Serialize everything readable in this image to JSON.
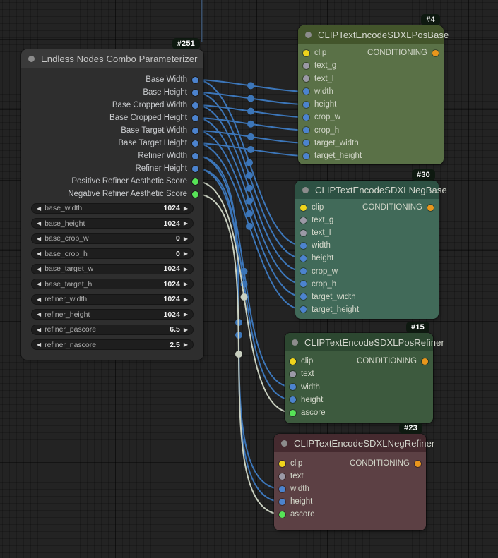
{
  "colors": {
    "canvas_bg": "#232323",
    "badge_bg": "#0e1910",
    "wire_int": "#3c76b9",
    "wire_float": "#c9d0c0",
    "wire_offscreen": "#3a506b",
    "slot": {
      "int": "#4c83ce",
      "score": "#57e357",
      "clip": "#efd41c",
      "text": "#9b99a6",
      "conditioning": "#e9961c"
    },
    "node": {
      "param_header": "#3a3a3a",
      "param_body": "#2e2e2e",
      "posbase_header": "#43552b",
      "posbase_body": "#5a7147",
      "negbase_header": "#2d5143",
      "negbase_body": "#416a59",
      "posrefiner_header": "#2c4730",
      "posrefiner_body": "#3d5a3e",
      "negrefiner_header": "#452a2f",
      "negrefiner_body": "#5c4044"
    }
  },
  "icons": {
    "arrow_left": "◀",
    "arrow_right": "▶"
  },
  "nodes": {
    "param": {
      "badge": "#251",
      "title": "Endless Nodes Combo Parameterizer",
      "outputs": [
        {
          "label": "Base Width",
          "type": "int"
        },
        {
          "label": "Base Height",
          "type": "int"
        },
        {
          "label": "Base Cropped Width",
          "type": "int"
        },
        {
          "label": "Base Cropped Height",
          "type": "int"
        },
        {
          "label": "Base Target Width",
          "type": "int"
        },
        {
          "label": "Base Target Height",
          "type": "int"
        },
        {
          "label": "Refiner Width",
          "type": "int"
        },
        {
          "label": "Refiner Height",
          "type": "int"
        },
        {
          "label": "Positive Refiner Aesthetic Score",
          "type": "score"
        },
        {
          "label": "Negative Refiner Aesthetic Score",
          "type": "score"
        }
      ],
      "widgets": [
        {
          "name": "base_width",
          "value": "1024"
        },
        {
          "name": "base_height",
          "value": "1024"
        },
        {
          "name": "base_crop_w",
          "value": "0"
        },
        {
          "name": "base_crop_h",
          "value": "0"
        },
        {
          "name": "base_target_w",
          "value": "1024"
        },
        {
          "name": "base_target_h",
          "value": "1024"
        },
        {
          "name": "refiner_width",
          "value": "1024"
        },
        {
          "name": "refiner_height",
          "value": "1024"
        },
        {
          "name": "refiner_pascore",
          "value": "6.5"
        },
        {
          "name": "refiner_nascore",
          "value": "2.5"
        }
      ]
    },
    "posbase": {
      "badge": "#4",
      "title": "CLIPTextEncodeSDXLPosBase",
      "inputs": [
        {
          "label": "clip",
          "type": "clip"
        },
        {
          "label": "text_g",
          "type": "text"
        },
        {
          "label": "text_l",
          "type": "text"
        },
        {
          "label": "width",
          "type": "int"
        },
        {
          "label": "height",
          "type": "int"
        },
        {
          "label": "crop_w",
          "type": "int"
        },
        {
          "label": "crop_h",
          "type": "int"
        },
        {
          "label": "target_width",
          "type": "int"
        },
        {
          "label": "target_height",
          "type": "int"
        }
      ],
      "outputs": [
        {
          "label": "CONDITIONING",
          "type": "conditioning"
        }
      ]
    },
    "negbase": {
      "badge": "#30",
      "title": "CLIPTextEncodeSDXLNegBase",
      "inputs": [
        {
          "label": "clip",
          "type": "clip"
        },
        {
          "label": "text_g",
          "type": "text"
        },
        {
          "label": "text_l",
          "type": "text"
        },
        {
          "label": "width",
          "type": "int"
        },
        {
          "label": "height",
          "type": "int"
        },
        {
          "label": "crop_w",
          "type": "int"
        },
        {
          "label": "crop_h",
          "type": "int"
        },
        {
          "label": "target_width",
          "type": "int"
        },
        {
          "label": "target_height",
          "type": "int"
        }
      ],
      "outputs": [
        {
          "label": "CONDITIONING",
          "type": "conditioning"
        }
      ]
    },
    "posrefiner": {
      "badge": "#15",
      "title": "CLIPTextEncodeSDXLPosRefiner",
      "inputs": [
        {
          "label": "clip",
          "type": "clip"
        },
        {
          "label": "text",
          "type": "text"
        },
        {
          "label": "width",
          "type": "int"
        },
        {
          "label": "height",
          "type": "int"
        },
        {
          "label": "ascore",
          "type": "score"
        }
      ],
      "outputs": [
        {
          "label": "CONDITIONING",
          "type": "conditioning"
        }
      ]
    },
    "negrefiner": {
      "badge": "#23",
      "title": "CLIPTextEncodeSDXLNegRefiner",
      "inputs": [
        {
          "label": "clip",
          "type": "clip"
        },
        {
          "label": "text",
          "type": "text"
        },
        {
          "label": "width",
          "type": "int"
        },
        {
          "label": "height",
          "type": "int"
        },
        {
          "label": "ascore",
          "type": "score"
        }
      ],
      "outputs": [
        {
          "label": "CONDITIONING",
          "type": "conditioning"
        }
      ]
    }
  },
  "links": [
    {
      "from": "param:Base Width",
      "to": "posbase:width",
      "type": "int"
    },
    {
      "from": "param:Base Height",
      "to": "posbase:height",
      "type": "int"
    },
    {
      "from": "param:Base Cropped Width",
      "to": "posbase:crop_w",
      "type": "int"
    },
    {
      "from": "param:Base Cropped Height",
      "to": "posbase:crop_h",
      "type": "int"
    },
    {
      "from": "param:Base Target Width",
      "to": "posbase:target_width",
      "type": "int"
    },
    {
      "from": "param:Base Target Height",
      "to": "posbase:target_height",
      "type": "int"
    },
    {
      "from": "param:Base Width",
      "to": "negbase:width",
      "type": "int"
    },
    {
      "from": "param:Base Height",
      "to": "negbase:height",
      "type": "int"
    },
    {
      "from": "param:Base Cropped Width",
      "to": "negbase:crop_w",
      "type": "int"
    },
    {
      "from": "param:Base Cropped Height",
      "to": "negbase:crop_h",
      "type": "int"
    },
    {
      "from": "param:Base Target Width",
      "to": "negbase:target_width",
      "type": "int"
    },
    {
      "from": "param:Base Target Height",
      "to": "negbase:target_height",
      "type": "int"
    },
    {
      "from": "param:Refiner Width",
      "to": "posrefiner:width",
      "type": "int"
    },
    {
      "from": "param:Refiner Height",
      "to": "posrefiner:height",
      "type": "int"
    },
    {
      "from": "param:Refiner Width",
      "to": "negrefiner:width",
      "type": "int"
    },
    {
      "from": "param:Refiner Height",
      "to": "negrefiner:height",
      "type": "int"
    },
    {
      "from": "param:Positive Refiner Aesthetic Score",
      "to": "posrefiner:ascore",
      "type": "float"
    },
    {
      "from": "param:Negative Refiner Aesthetic Score",
      "to": "negrefiner:ascore",
      "type": "float"
    }
  ]
}
